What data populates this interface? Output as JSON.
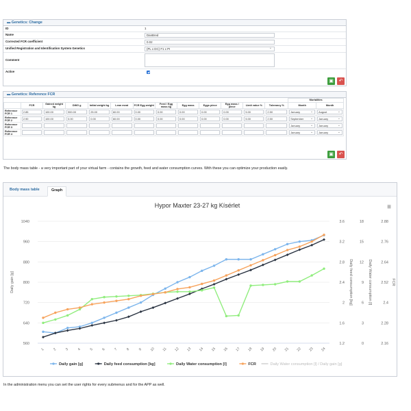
{
  "change_panel": {
    "title": "Genetics: Change",
    "fields": [
      {
        "label": "ID",
        "value": "1"
      },
      {
        "label": "Name",
        "value": "DanBred"
      },
      {
        "label": "Corrected FCR coefficient",
        "value": "0.02"
      },
      {
        "label": "Unified Registration and Identification System Genetics",
        "value": "(PL x DC) F1 x PI"
      },
      {
        "label": "Comment",
        "value": ""
      },
      {
        "label": "Active",
        "value": "checked"
      }
    ]
  },
  "ref_panel": {
    "title": "Genetics: Reference FCR",
    "group_header": "Mortalities",
    "headers": [
      "FCR",
      "Gained weight kg",
      "DWG g",
      "Initial weight kg",
      "Lean meat",
      "FCR Egg weight",
      "Feed / Egg mass kg",
      "Egg mass",
      "Eggs piece",
      "Egg mass / piece",
      "Limit value %",
      "Tolerancy %",
      "Month",
      "Month"
    ],
    "rows": [
      {
        "label": "Reference FCR 1",
        "cells": [
          "2.85",
          "100.00",
          "900.00",
          "25.00",
          "60.00",
          "0.00",
          "0.00",
          "0.00",
          "0.00",
          "0.00",
          "5.00",
          "2.50"
        ],
        "month1": "January",
        "month2": "August"
      },
      {
        "label": "Reference FCR 2",
        "cells": [
          "2.90",
          "100.00",
          "0.00",
          "0.00",
          "60.00",
          "0.00",
          "0.00",
          "0.00",
          "0.00",
          "0.00",
          "5.00",
          "2.50"
        ],
        "month1": "September",
        "month2": "January"
      },
      {
        "label": "Reference FCR 3",
        "cells": [
          "",
          "",
          "",
          "",
          "",
          "",
          "",
          "",
          "",
          "",
          "",
          ""
        ],
        "month1": "January",
        "month2": "January"
      },
      {
        "label": "Reference FCR 4",
        "cells": [
          "",
          "",
          "",
          "",
          "",
          "",
          "",
          "",
          "",
          "",
          "",
          ""
        ],
        "month1": "January",
        "month2": "January"
      }
    ]
  },
  "text_1": "The body mass table - a very important part of your virtual farm - contains the growth, feed and water consumption curves. With these you can optimize your production easily.",
  "tabs": [
    "Body mass table",
    "Graph"
  ],
  "active_tab": "Graph",
  "text_2": "In the administration menu you can set the user rights for every submenus and for the APP as well.",
  "chart_data": {
    "type": "line",
    "title": "Hypor Maxter 23-27 kg Kísérlet",
    "x": [
      1,
      2,
      3,
      4,
      5,
      6,
      7,
      8,
      9,
      10,
      11,
      12,
      13,
      14,
      15,
      16,
      17,
      18,
      19,
      20,
      21,
      22,
      23,
      24
    ],
    "axes": {
      "left": {
        "label": "Daily gain [g]",
        "ticks": [
          560,
          640,
          720,
          800,
          880,
          960,
          1040
        ]
      },
      "right1": {
        "label": "Daily feed consumption [kg]",
        "ticks": [
          1.2,
          1.6,
          2,
          2.4,
          2.8,
          3.2,
          3.6
        ]
      },
      "right2": {
        "label": "Daily Water consumption [l]",
        "ticks": [
          0,
          3,
          6,
          9,
          12,
          15,
          18
        ]
      },
      "right3": {
        "label": "FCR",
        "ticks": [
          2.16,
          2.28,
          2.4,
          2.52,
          2.64,
          2.76,
          2.88
        ]
      }
    },
    "series": [
      {
        "name": "Daily gain [g]",
        "axis": "left",
        "color": "#7cb5ec",
        "marker": "circle",
        "values": [
          605,
          600,
          620,
          625,
          640,
          660,
          680,
          700,
          720,
          750,
          775,
          800,
          820,
          845,
          865,
          890,
          890,
          890,
          910,
          930,
          950,
          960,
          965,
          985
        ]
      },
      {
        "name": "Daily feed consumption [kg]",
        "axis": "right1",
        "color": "#2b3442",
        "marker": "diamond",
        "values": [
          1.32,
          1.4,
          1.45,
          1.49,
          1.55,
          1.6,
          1.65,
          1.72,
          1.82,
          1.9,
          1.99,
          2.08,
          2.17,
          2.27,
          2.36,
          2.46,
          2.55,
          2.64,
          2.74,
          2.84,
          2.94,
          3.04,
          3.13,
          3.24
        ]
      },
      {
        "name": "Daily Water consumption [l]",
        "axis": "right2",
        "color": "#90ed7d",
        "marker": "circle",
        "values": [
          3.0,
          3.5,
          4.1,
          5.0,
          6.5,
          6.8,
          6.9,
          7.0,
          7.1,
          7.3,
          7.5,
          7.6,
          7.6,
          7.8,
          8.2,
          4.0,
          4.1,
          8.5,
          8.6,
          8.7,
          9.1,
          9.1,
          10.0,
          11.0
        ]
      },
      {
        "name": "FCR",
        "axis": "right3",
        "color": "#f7a35c",
        "marker": "circle",
        "values": [
          2.31,
          2.34,
          2.36,
          2.37,
          2.39,
          2.4,
          2.41,
          2.42,
          2.44,
          2.45,
          2.46,
          2.48,
          2.49,
          2.51,
          2.53,
          2.56,
          2.59,
          2.62,
          2.65,
          2.68,
          2.71,
          2.73,
          2.76,
          2.8
        ]
      }
    ],
    "legend_extra": "Daily Water consumption [l] / Daily gain [g]",
    "legend_placement": "bottom",
    "grid": true
  }
}
